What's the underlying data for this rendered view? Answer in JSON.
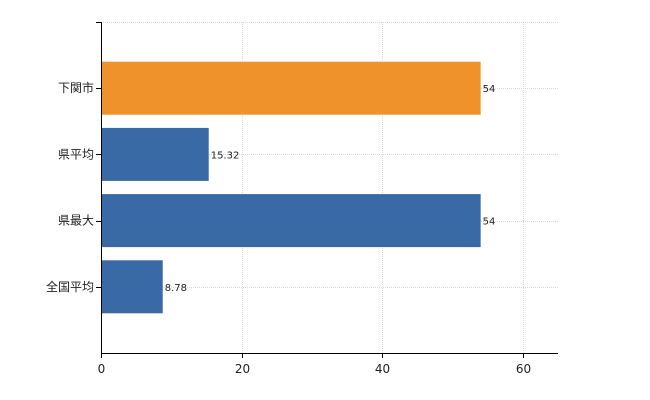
{
  "chart_data": {
    "type": "bar",
    "orientation": "horizontal",
    "categories": [
      "下関市",
      "県平均",
      "県最大",
      "全国平均"
    ],
    "values": [
      54,
      15.32,
      54,
      8.78
    ],
    "value_labels": [
      "54",
      "15.32",
      "54",
      "8.78"
    ],
    "colors": [
      "#f0922b",
      "#3a6aa5",
      "#3a6aa5",
      "#3a6aa5"
    ],
    "xlim": [
      0,
      65
    ],
    "xticks": [
      0,
      20,
      40,
      60
    ],
    "xtick_labels": [
      "0",
      "20",
      "40",
      "60"
    ],
    "grid": true,
    "legend": "none"
  }
}
